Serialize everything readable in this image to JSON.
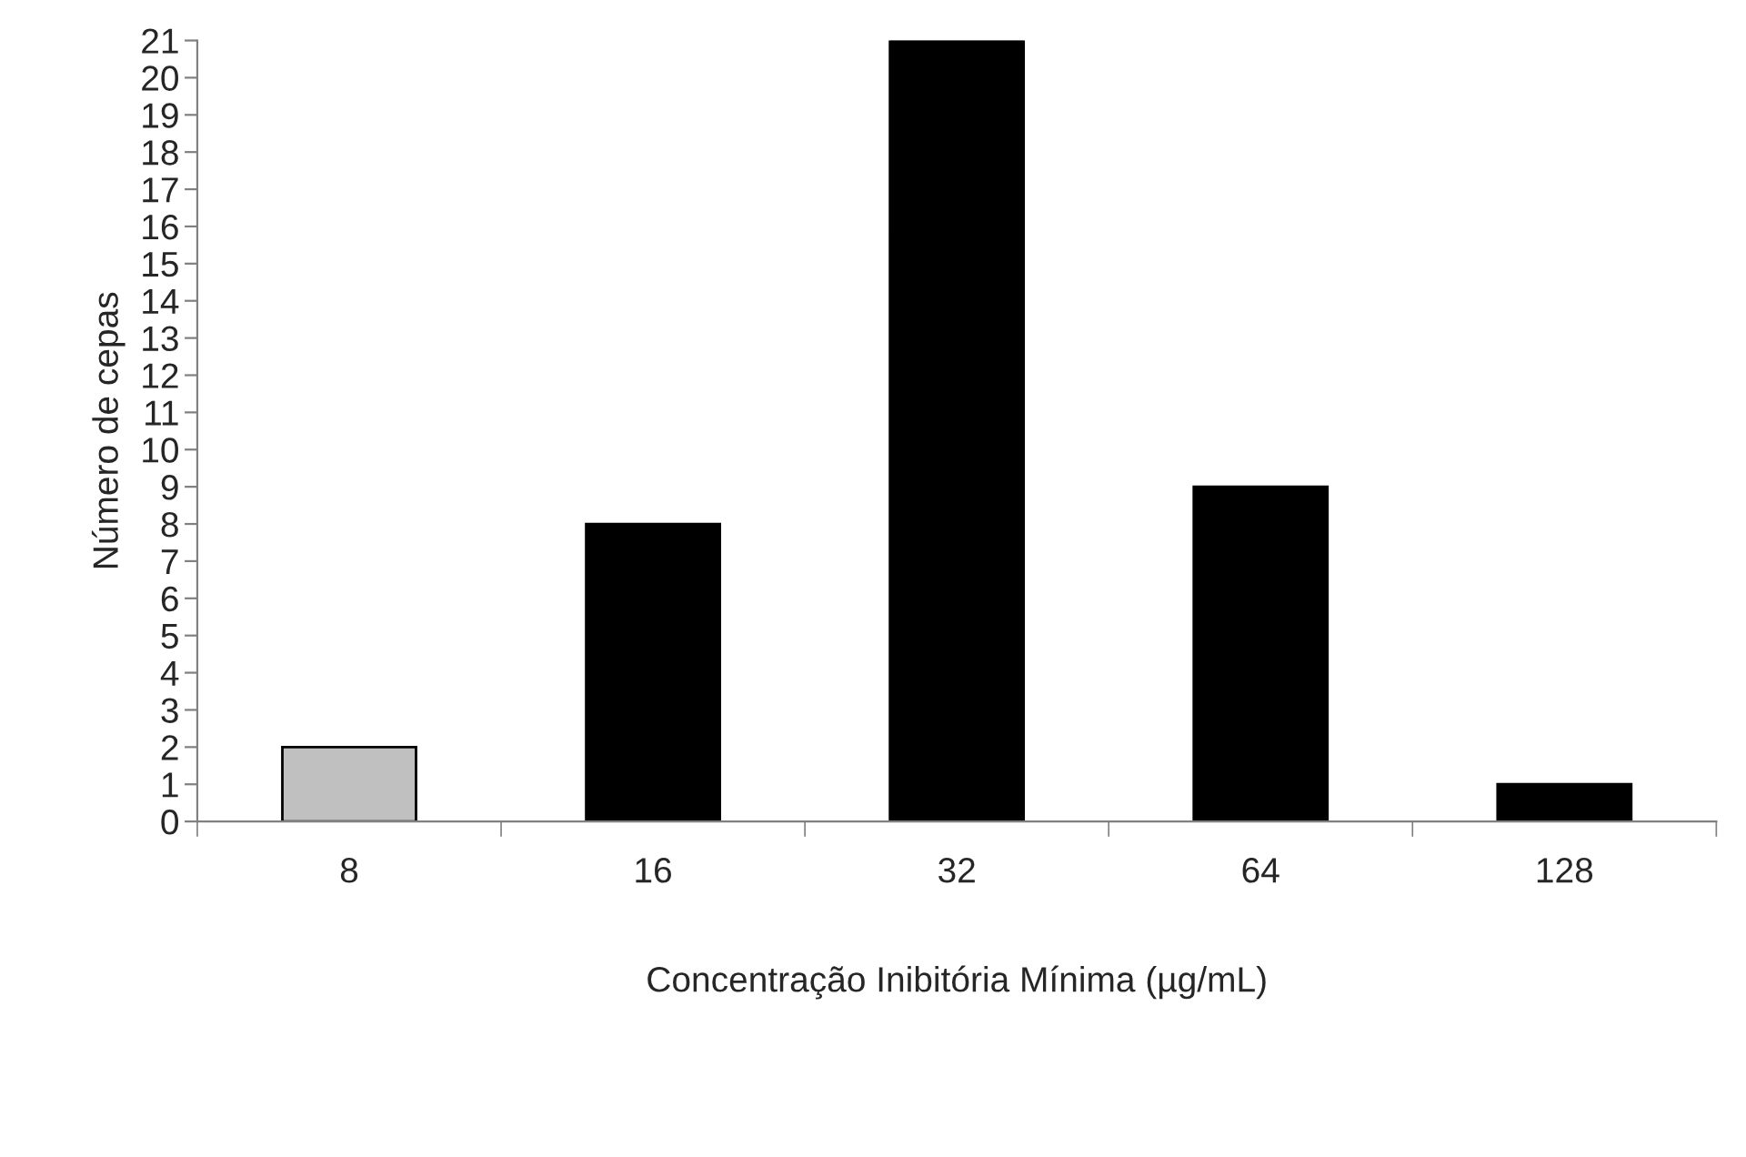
{
  "chart_data": {
    "type": "bar",
    "xlabel": "Concentração Inibitória Mínima (µg/mL)",
    "ylabel": "Número de cepas",
    "categories": [
      "8",
      "16",
      "32",
      "64",
      "128"
    ],
    "values": [
      2,
      8,
      21,
      9,
      1
    ],
    "colors": [
      "#c0c0c0",
      "#000000",
      "#000000",
      "#000000",
      "#000000"
    ],
    "ylim": [
      0,
      21
    ],
    "yticks": [
      0,
      1,
      2,
      3,
      4,
      5,
      6,
      7,
      8,
      9,
      10,
      11,
      12,
      13,
      14,
      15,
      16,
      17,
      18,
      19,
      20,
      21
    ],
    "grid": false,
    "legend": false
  }
}
